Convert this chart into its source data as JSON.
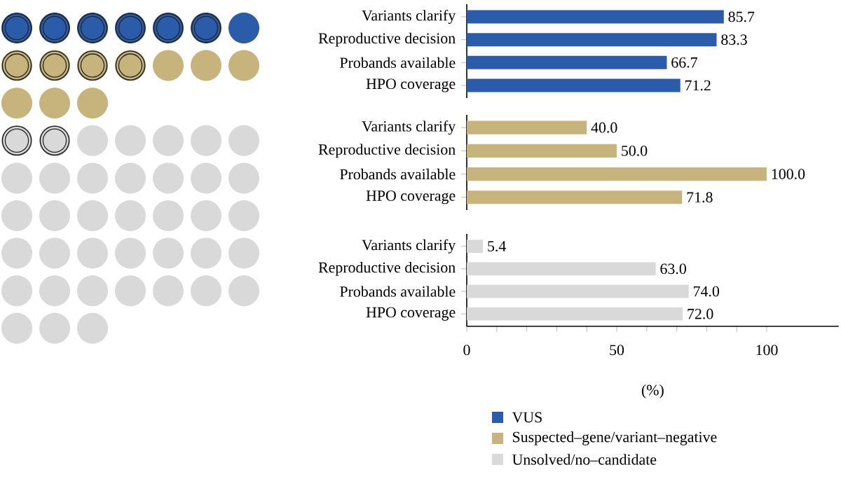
{
  "chart_data": [
    {
      "type": "bar",
      "orientation": "horizontal",
      "categories": [
        "Variants clarify",
        "Reproductive decision",
        "Probands available",
        "HPO coverage"
      ],
      "series": [
        {
          "name": "VUS",
          "color": "#2a5caa",
          "values": [
            85.7,
            83.3,
            66.7,
            71.2
          ],
          "value_labels": [
            "85.7",
            "83.3",
            "66.7",
            "71.2"
          ]
        }
      ],
      "tick_labels": "y",
      "legend": "bottom"
    },
    {
      "type": "bar",
      "orientation": "horizontal",
      "categories": [
        "Variants clarify",
        "Reproductive decision",
        "Probands available",
        "HPO coverage"
      ],
      "series": [
        {
          "name": "Suspected–gene/variant–negative",
          "color": "#c6b47c",
          "values": [
            40.0,
            50.0,
            100.0,
            71.8
          ],
          "value_labels": [
            "40.0",
            "50.0",
            "100.0",
            "71.8"
          ]
        }
      ],
      "tick_labels": "y",
      "legend": "bottom"
    },
    {
      "type": "bar",
      "orientation": "horizontal",
      "categories": [
        "Variants clarify",
        "Reproductive decision",
        "Probands available",
        "HPO coverage"
      ],
      "series": [
        {
          "name": "Unsolved/no–candidate",
          "color": "#d9d9d9",
          "values": [
            5.4,
            63.0,
            74.0,
            72.0
          ],
          "value_labels": [
            "5.4",
            "63.0",
            "74.0",
            "72.0"
          ]
        }
      ],
      "xlim": [
        0,
        124
      ],
      "xticks": [
        0,
        50,
        100
      ],
      "xlabel": "(%)",
      "legend": "bottom"
    }
  ]
}
